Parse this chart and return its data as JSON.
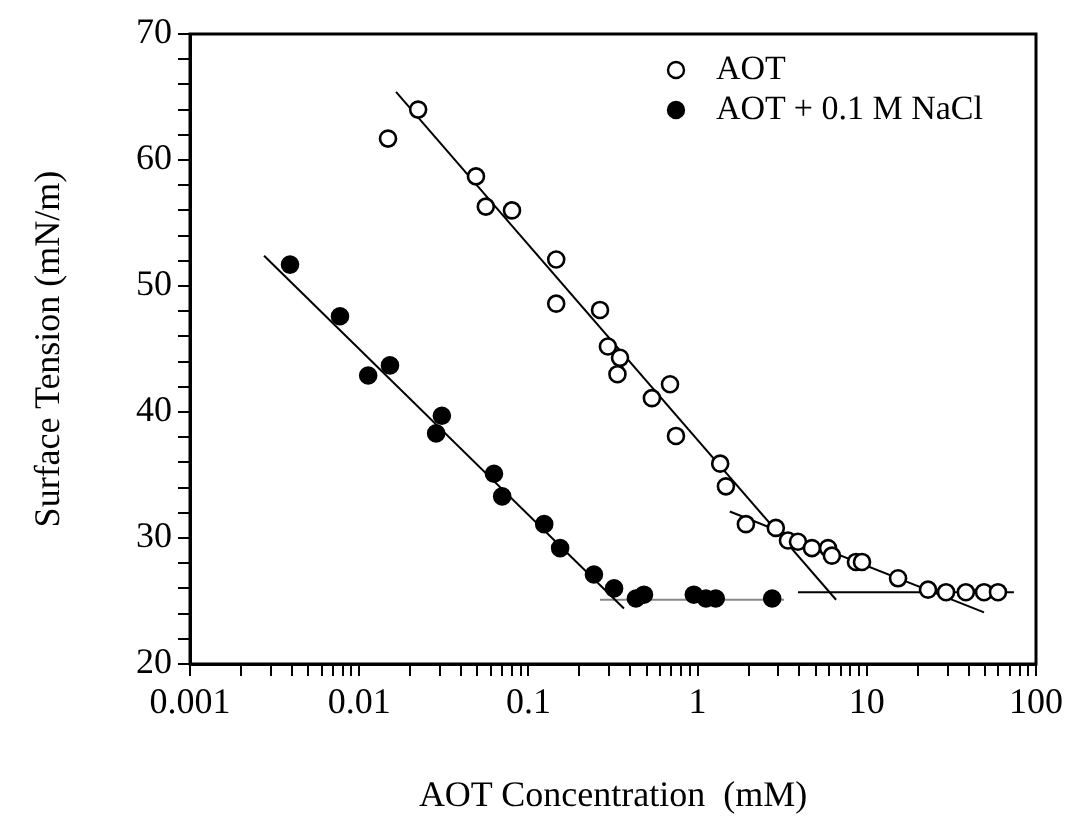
{
  "chart_data": {
    "type": "scatter",
    "xlabel": "AOT Concentration  (mM)",
    "ylabel": "Surface Tension (mN/m)",
    "log": "x",
    "grid": false,
    "legend": "top right",
    "xlim": [
      0.001,
      100
    ],
    "ylim": [
      20,
      70
    ],
    "xticks": [
      0.001,
      {
        "value": 0.002,
        "label": null
      },
      {
        "value": 0.003,
        "label": null
      },
      {
        "value": 0.004,
        "label": null
      },
      {
        "value": 0.005,
        "label": null
      },
      {
        "value": 0.006,
        "label": null
      },
      {
        "value": 0.007,
        "label": null
      },
      {
        "value": 0.008,
        "label": null
      },
      {
        "value": 0.009,
        "label": null
      },
      0.01,
      {
        "value": 0.02,
        "label": null
      },
      {
        "value": 0.03,
        "label": null
      },
      {
        "value": 0.04,
        "label": null
      },
      {
        "value": 0.05,
        "label": null
      },
      {
        "value": 0.06,
        "label": null
      },
      {
        "value": 0.07,
        "label": null
      },
      {
        "value": 0.08,
        "label": null
      },
      {
        "value": 0.09,
        "label": null
      },
      0.1,
      {
        "value": 0.2,
        "label": null
      },
      {
        "value": 0.3,
        "label": null
      },
      {
        "value": 0.4,
        "label": null
      },
      {
        "value": 0.5,
        "label": null
      },
      {
        "value": 0.6,
        "label": null
      },
      {
        "value": 0.7,
        "label": null
      },
      {
        "value": 0.8,
        "label": null
      },
      {
        "value": 0.9,
        "label": null
      },
      1,
      {
        "value": 2,
        "label": null
      },
      {
        "value": 3,
        "label": null
      },
      {
        "value": 4,
        "label": null
      },
      {
        "value": 5,
        "label": null
      },
      {
        "value": 6,
        "label": null
      },
      {
        "value": 7,
        "label": null
      },
      {
        "value": 8,
        "label": null
      },
      {
        "value": 9,
        "label": null
      },
      10,
      {
        "value": 20,
        "label": null
      },
      {
        "value": 30,
        "label": null
      },
      {
        "value": 40,
        "label": null
      },
      {
        "value": 50,
        "label": null
      },
      {
        "value": 60,
        "label": null
      },
      {
        "value": 70,
        "label": null
      },
      {
        "value": 80,
        "label": null
      },
      {
        "value": 90,
        "label": null
      },
      100
    ],
    "yticks": [
      20,
      {
        "value": 22,
        "label": null
      },
      {
        "value": 24,
        "label": null
      },
      {
        "value": 26,
        "label": null
      },
      {
        "value": 28,
        "label": null
      },
      30,
      {
        "value": 32,
        "label": null
      },
      {
        "value": 34,
        "label": null
      },
      {
        "value": 36,
        "label": null
      },
      {
        "value": 38,
        "label": null
      },
      40,
      {
        "value": 42,
        "label": null
      },
      {
        "value": 44,
        "label": null
      },
      {
        "value": 46,
        "label": null
      },
      {
        "value": 48,
        "label": null
      },
      50,
      {
        "value": 52,
        "label": null
      },
      {
        "value": 54,
        "label": null
      },
      {
        "value": 56,
        "label": null
      },
      {
        "value": 58,
        "label": null
      },
      60,
      {
        "value": 62,
        "label": null
      },
      {
        "value": 64,
        "label": null
      },
      {
        "value": 66,
        "label": null
      },
      {
        "value": 68,
        "label": null
      },
      70
    ],
    "series": [
      {
        "name": "AOT",
        "color": "#ffffff",
        "marker": "circle",
        "x": [
          0.0148,
          0.0223,
          0.049,
          0.056,
          0.08,
          0.146,
          0.146,
          0.265,
          0.295,
          0.348,
          0.336,
          0.537,
          0.687,
          0.745,
          1.36,
          1.47,
          1.93,
          2.9,
          3.42,
          3.92,
          4.74,
          5.9,
          6.22,
          8.63,
          9.37,
          15.3,
          23,
          29.4,
          38.5,
          49.3,
          59.6
        ],
        "values": [
          61.7,
          64.0,
          58.7,
          56.3,
          56.0,
          52.1,
          48.6,
          48.1,
          45.2,
          44.3,
          43.0,
          41.1,
          42.2,
          38.1,
          35.9,
          34.1,
          31.1,
          30.8,
          29.8,
          29.7,
          29.2,
          29.2,
          28.6,
          28.1,
          28.1,
          26.8,
          25.9,
          25.7,
          25.7,
          25.7,
          25.7
        ]
      },
      {
        "name": "AOT + 0.1 M NaCl",
        "color": "#000000",
        "marker": "circle",
        "x": [
          0.0039,
          0.0077,
          0.0113,
          0.0152,
          0.0285,
          0.0308,
          0.0626,
          0.07,
          0.124,
          0.154,
          0.244,
          0.321,
          0.432,
          0.482,
          0.95,
          1.12,
          1.28,
          2.76
        ],
        "values": [
          51.7,
          47.6,
          42.9,
          43.7,
          38.3,
          39.7,
          35.1,
          33.3,
          31.1,
          29.2,
          27.1,
          26.0,
          25.2,
          25.5,
          25.5,
          25.2,
          25.2,
          25.2
        ]
      },
      {
        "type": "line",
        "color": "#000000",
        "marker": "none",
        "x": [
          0.0165,
          6.58
        ],
        "values": [
          65.4,
          25.1
        ]
      },
      {
        "type": "line",
        "color": "#000000",
        "marker": "none",
        "x": [
          1.55,
          49.3
        ],
        "values": [
          32.1,
          24.1
        ]
      },
      {
        "type": "line",
        "color": "#000000",
        "marker": "none",
        "x": [
          3.92,
          74
        ],
        "values": [
          25.7,
          25.7
        ]
      },
      {
        "type": "line",
        "color": "#000000",
        "marker": "none",
        "x": [
          0.00274,
          0.367
        ],
        "values": [
          52.4,
          24.4
        ]
      },
      {
        "type": "line",
        "color": "#888888",
        "marker": "none",
        "x": [
          0.265,
          3.24
        ],
        "values": [
          25.1,
          25.1
        ]
      }
    ]
  }
}
